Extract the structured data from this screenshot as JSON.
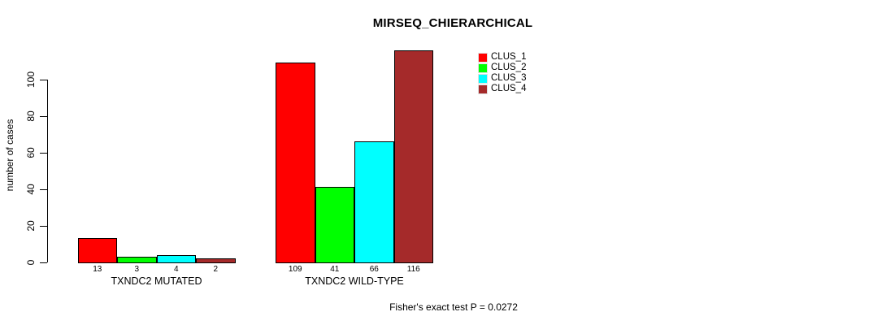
{
  "chart_data": {
    "type": "bar",
    "title": "MIRSEQ_CHIERARCHICAL",
    "ylabel": "number of cases",
    "xlabel": "",
    "categories": [
      "TXNDC2 MUTATED",
      "TXNDC2 WILD-TYPE"
    ],
    "series": [
      {
        "name": "CLUS_1",
        "color": "#ff0000",
        "values": [
          13,
          109
        ]
      },
      {
        "name": "CLUS_2",
        "color": "#00ff00",
        "values": [
          3,
          41
        ]
      },
      {
        "name": "CLUS_3",
        "color": "#00ffff",
        "values": [
          4,
          66
        ]
      },
      {
        "name": "CLUS_4",
        "color": "#a52a2a",
        "values": [
          2,
          116
        ]
      }
    ],
    "bar_value_labels": [
      [
        13,
        3,
        4,
        2
      ],
      [
        109,
        41,
        66,
        116
      ]
    ],
    "yticks": [
      0,
      20,
      40,
      60,
      80,
      100
    ],
    "ylim": [
      0,
      100
    ],
    "grid": false,
    "legend_position": "top-right",
    "annotation": "Fisher's exact test P = 0.0272"
  },
  "colors": {
    "background": "#ffffff",
    "axis": "#000000",
    "text": "#000000",
    "bar_border": "#000000"
  }
}
